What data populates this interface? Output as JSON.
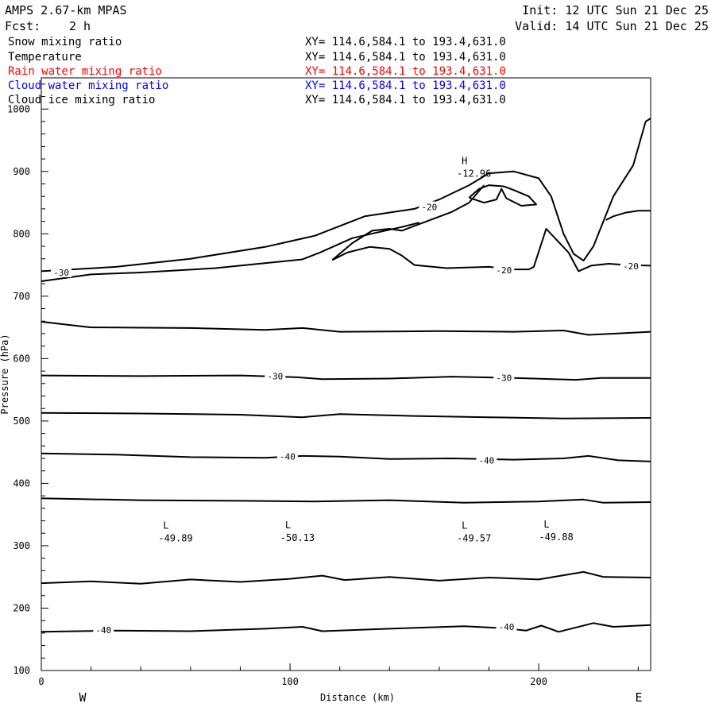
{
  "header": {
    "model": "AMPS 2.67-km MPAS",
    "init": "Init: 12 UTC Sun 21 Dec 25",
    "fcst_label": "Fcst:",
    "fcst_value": "2 h",
    "valid": "Valid: 14 UTC Sun 21 Dec 25"
  },
  "fields": [
    {
      "name": "Snow mixing ratio",
      "xy": "XY= 114.6,584.1 to 193.4,631.0",
      "color": "#000000"
    },
    {
      "name": "Temperature",
      "xy": "XY= 114.6,584.1 to 193.4,631.0",
      "color": "#000000"
    },
    {
      "name": "Rain water mixing ratio",
      "xy": "XY= 114.6,584.1 to 193.4,631.0",
      "color": "#ff0000"
    },
    {
      "name": "Cloud water mixing ratio",
      "xy": "XY= 114.6,584.1 to 193.4,631.0",
      "color": "#0000ff"
    },
    {
      "name": "Cloud ice mixing ratio",
      "xy": "XY= 114.6,584.1 to 193.4,631.0",
      "color": "#000000"
    }
  ],
  "chart_data": {
    "type": "line",
    "xlabel": "Distance (km)",
    "ylabel": "Pressure (hPa)",
    "xlim": [
      0,
      245
    ],
    "ylim": [
      1050,
      100
    ],
    "x_ticks": [
      0,
      100,
      200
    ],
    "y_ticks": [
      100,
      200,
      300,
      400,
      500,
      600,
      700,
      800,
      900,
      1000
    ],
    "x_minor_step": 20,
    "y_minor_step": 20,
    "west_label": "W",
    "east_label": "E",
    "extrema": [
      {
        "symbol": "L",
        "value": "-49.89",
        "x": 54,
        "p": 313
      },
      {
        "symbol": "L",
        "value": "-50.13",
        "x": 103,
        "p": 314
      },
      {
        "symbol": "L",
        "value": "-49.57",
        "x": 174,
        "p": 313
      },
      {
        "symbol": "L",
        "value": "-49.88",
        "x": 207,
        "p": 315
      },
      {
        "symbol": "H",
        "value": "-12.96",
        "x": 174,
        "p": 898
      }
    ],
    "contour_labels": [
      {
        "text": "-40",
        "x": 25,
        "p": 165
      },
      {
        "text": "-40",
        "x": 187,
        "p": 170
      },
      {
        "text": "-40",
        "x": 99,
        "p": 443
      },
      {
        "text": "-40",
        "x": 179,
        "p": 437
      },
      {
        "text": "-30",
        "x": 94,
        "p": 572
      },
      {
        "text": "-30",
        "x": 186,
        "p": 569
      },
      {
        "text": "-30",
        "x": 8,
        "p": 738
      },
      {
        "text": "-20",
        "x": 186,
        "p": 742
      },
      {
        "text": "-20",
        "x": 237,
        "p": 748
      },
      {
        "text": "-20",
        "x": 156,
        "p": 843
      }
    ],
    "series": [
      {
        "points": [
          [
            0,
            162
          ],
          [
            30,
            164
          ],
          [
            60,
            163
          ],
          [
            90,
            167
          ],
          [
            105,
            170
          ],
          [
            113,
            163
          ],
          [
            140,
            167
          ],
          [
            170,
            171
          ],
          [
            185,
            168
          ],
          [
            195,
            164
          ],
          [
            201,
            172
          ],
          [
            208,
            162
          ],
          [
            222,
            176
          ],
          [
            230,
            170
          ],
          [
            245,
            173
          ]
        ]
      },
      {
        "points": [
          [
            0,
            240
          ],
          [
            20,
            243
          ],
          [
            40,
            239
          ],
          [
            60,
            246
          ],
          [
            80,
            242
          ],
          [
            100,
            247
          ],
          [
            113,
            252
          ],
          [
            122,
            245
          ],
          [
            140,
            250
          ],
          [
            160,
            244
          ],
          [
            180,
            249
          ],
          [
            200,
            246
          ],
          [
            218,
            258
          ],
          [
            226,
            250
          ],
          [
            245,
            249
          ]
        ]
      },
      {
        "points": [
          [
            0,
            376
          ],
          [
            40,
            373
          ],
          [
            80,
            372
          ],
          [
            110,
            371
          ],
          [
            140,
            373
          ],
          [
            170,
            369
          ],
          [
            200,
            371
          ],
          [
            218,
            374
          ],
          [
            226,
            369
          ],
          [
            245,
            370
          ]
        ]
      },
      {
        "points": [
          [
            0,
            448
          ],
          [
            30,
            446
          ],
          [
            60,
            442
          ],
          [
            90,
            441
          ],
          [
            105,
            444
          ],
          [
            120,
            443
          ],
          [
            140,
            439
          ],
          [
            165,
            440
          ],
          [
            190,
            438
          ],
          [
            210,
            440
          ],
          [
            220,
            444
          ],
          [
            232,
            437
          ],
          [
            245,
            435
          ]
        ]
      },
      {
        "points": [
          [
            0,
            513
          ],
          [
            40,
            512
          ],
          [
            80,
            510
          ],
          [
            105,
            506
          ],
          [
            120,
            511
          ],
          [
            150,
            508
          ],
          [
            180,
            506
          ],
          [
            210,
            504
          ],
          [
            245,
            505
          ]
        ]
      },
      {
        "points": [
          [
            0,
            573
          ],
          [
            40,
            572
          ],
          [
            80,
            573
          ],
          [
            103,
            570
          ],
          [
            113,
            567
          ],
          [
            140,
            568
          ],
          [
            165,
            571
          ],
          [
            190,
            569
          ],
          [
            215,
            566
          ],
          [
            225,
            569
          ],
          [
            245,
            569
          ]
        ]
      },
      {
        "points": [
          [
            0,
            659
          ],
          [
            20,
            650
          ],
          [
            60,
            649
          ],
          [
            90,
            646
          ],
          [
            105,
            649
          ],
          [
            120,
            643
          ],
          [
            160,
            644
          ],
          [
            190,
            643
          ],
          [
            210,
            645
          ],
          [
            220,
            638
          ],
          [
            230,
            640
          ],
          [
            245,
            643
          ]
        ]
      },
      {
        "points": [
          [
            0,
            724
          ],
          [
            20,
            735
          ],
          [
            40,
            738
          ],
          [
            70,
            745
          ],
          [
            105,
            759
          ],
          [
            112,
            770
          ],
          [
            125,
            793
          ],
          [
            135,
            802
          ],
          [
            145,
            811
          ],
          [
            152,
            818
          ]
        ]
      },
      {
        "points": [
          [
            0,
            740
          ],
          [
            30,
            747
          ],
          [
            60,
            760
          ],
          [
            90,
            779
          ],
          [
            110,
            797
          ],
          [
            130,
            828
          ],
          [
            150,
            840
          ],
          [
            160,
            855
          ],
          [
            172,
            878
          ],
          [
            180,
            897
          ],
          [
            190,
            900
          ],
          [
            200,
            889
          ],
          [
            205,
            860
          ],
          [
            210,
            800
          ],
          [
            214,
            768
          ],
          [
            218,
            757
          ],
          [
            222,
            780
          ],
          [
            230,
            860
          ],
          [
            238,
            910
          ],
          [
            243,
            980
          ],
          [
            248,
            985
          ]
        ]
      },
      {
        "points": [
          [
            117,
            758
          ],
          [
            125,
            785
          ],
          [
            133,
            805
          ],
          [
            140,
            808
          ],
          [
            145,
            805
          ],
          [
            155,
            820
          ],
          [
            165,
            835
          ],
          [
            172,
            850
          ],
          [
            178,
            878
          ]
        ]
      },
      {
        "points": [
          [
            117,
            758
          ],
          [
            123,
            770
          ],
          [
            132,
            779
          ],
          [
            140,
            776
          ],
          [
            145,
            765
          ],
          [
            150,
            750
          ],
          [
            163,
            745
          ],
          [
            180,
            747
          ],
          [
            190,
            743
          ],
          [
            196,
            743
          ],
          [
            198,
            747
          ],
          [
            203,
            808
          ],
          [
            212,
            770
          ],
          [
            216,
            740
          ],
          [
            221,
            749
          ],
          [
            228,
            752
          ],
          [
            236,
            750
          ],
          [
            245,
            749
          ]
        ]
      },
      {
        "points": [
          [
            172,
            858
          ],
          [
            178,
            850
          ],
          [
            183,
            855
          ],
          [
            185,
            872
          ],
          [
            187,
            857
          ],
          [
            193,
            845
          ],
          [
            199,
            847
          ],
          [
            196,
            860
          ],
          [
            190,
            870
          ],
          [
            186,
            876
          ],
          [
            180,
            878
          ],
          [
            176,
            872
          ],
          [
            172,
            858
          ]
        ]
      },
      {
        "points": [
          [
            227,
            822
          ],
          [
            230,
            828
          ],
          [
            235,
            834
          ],
          [
            240,
            837
          ],
          [
            245,
            837
          ]
        ]
      }
    ]
  }
}
